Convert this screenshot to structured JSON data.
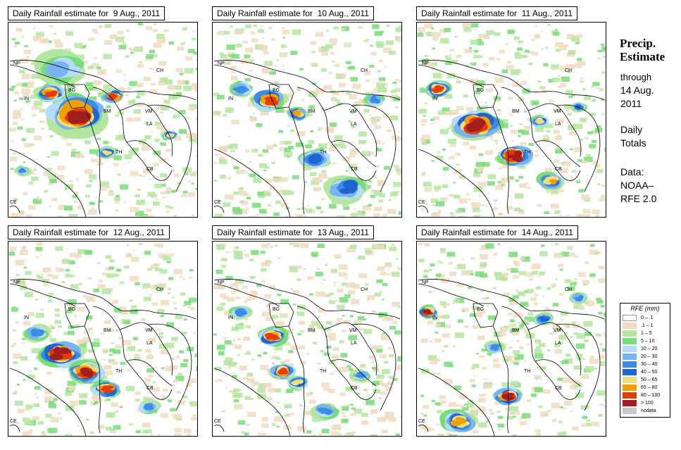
{
  "panels": [
    {
      "title": "Daily Rainfall estimate for  9 Aug., 2011"
    },
    {
      "title": "Daily Rainfall estimate for  10 Aug., 2011"
    },
    {
      "title": "Daily Rainfall estimate for  11 Aug., 2011"
    },
    {
      "title": "Daily Rainfall estimate for  12 Aug., 2011"
    },
    {
      "title": "Daily Rainfall estimate for  13 Aug., 2011"
    },
    {
      "title": "Daily Rainfall estimate for  14 Aug., 2011"
    }
  ],
  "country_labels": [
    "NP",
    "CH",
    "IN",
    "BG",
    "BM",
    "VM",
    "LA",
    "TH",
    "CB",
    "CE"
  ],
  "side": {
    "title_line1": "Precip.",
    "title_line2": "Estimate",
    "through": "through",
    "date_line1": "14 Aug.",
    "date_line2": "2011",
    "totals_line1": "Daily",
    "totals_line2": "Totals",
    "data_line1": "Data:",
    "data_line2": "NOAA–",
    "data_line3": "RFE 2.0"
  },
  "legend": {
    "title": "RFE (mm)",
    "items": [
      {
        "label": "0 – .1",
        "color": "#ffffff"
      },
      {
        "label": ".1 – 1",
        "color": "#f0dcc0"
      },
      {
        "label": "1 – 5",
        "color": "#b4e6a0"
      },
      {
        "label": "5 – 10",
        "color": "#78dc78"
      },
      {
        "label": "10 – 20",
        "color": "#b4dcff"
      },
      {
        "label": "20 – 30",
        "color": "#78b4f0"
      },
      {
        "label": "30 – 40",
        "color": "#3c8ce6"
      },
      {
        "label": "40 – 50",
        "color": "#1e64d2"
      },
      {
        "label": "50 – 65",
        "color": "#f0dc78"
      },
      {
        "label": "65 – 80",
        "color": "#f0a000"
      },
      {
        "label": "80 – 100",
        "color": "#e63c00"
      },
      {
        "label": "> 100",
        "color": "#a01e1e"
      },
      {
        "label": "nodata",
        "color": "#c8c8c8"
      }
    ]
  }
}
